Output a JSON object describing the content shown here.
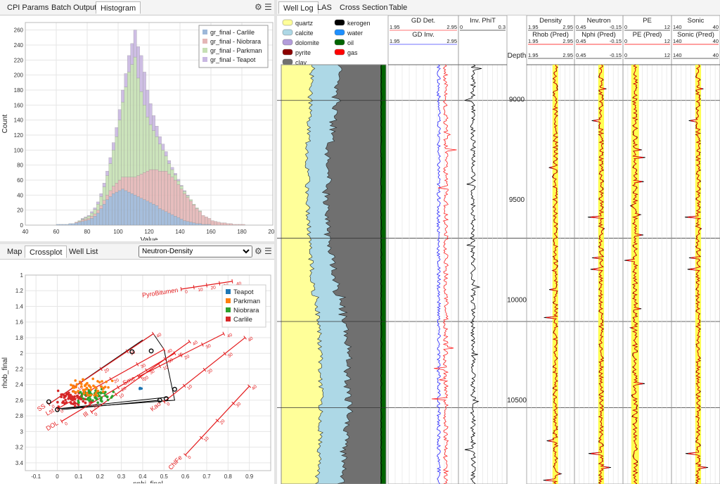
{
  "hist_panel": {
    "tabs": [
      "CPI Params",
      "Batch Output",
      "Histogram"
    ],
    "active_tab": "Histogram",
    "icons": [
      "gear-icon",
      "menu-icon"
    ]
  },
  "cross_panel": {
    "tabs": [
      "Map",
      "Crossplot",
      "Well List"
    ],
    "active_tab": "Crossplot",
    "select_value": "Neutron-Density",
    "icons": [
      "gear-icon",
      "menu-icon"
    ]
  },
  "log_panel": {
    "tabs": [
      "Well Log",
      "LAS",
      "Cross Section",
      "Table"
    ],
    "active_tab": "Well Log"
  },
  "chart_data": [
    {
      "type": "bar",
      "stacked": true,
      "title": "",
      "xlabel": "Value",
      "ylabel": "Count",
      "xlim": [
        40,
        200
      ],
      "ylim": [
        0,
        270
      ],
      "xticks": [
        "40",
        "60",
        "80",
        "100",
        "120",
        "140",
        "160",
        "180",
        "200"
      ],
      "yticks": [
        "0",
        "20",
        "40",
        "60",
        "80",
        "100",
        "120",
        "140",
        "160",
        "180",
        "200",
        "220",
        "240",
        "260"
      ],
      "legend_position": "top-right",
      "bin_width": 2,
      "bin_start": 60,
      "series": [
        {
          "name": "gr_final - Carlile",
          "color": "#9db8d9",
          "values": [
            1,
            1,
            1,
            1,
            2,
            2,
            3,
            4,
            5,
            6,
            7,
            9,
            12,
            16,
            22,
            28,
            34,
            38,
            42,
            44,
            46,
            48,
            46,
            44,
            42,
            40,
            38,
            36,
            34,
            32,
            30,
            28,
            26,
            22,
            20,
            18,
            16,
            14,
            12,
            10,
            8,
            6,
            5,
            4,
            3,
            2,
            2,
            1,
            1,
            1,
            0,
            0,
            0,
            0,
            0,
            0,
            0,
            0,
            0,
            0,
            0,
            0,
            0,
            0,
            0,
            0,
            0,
            0,
            0,
            0
          ]
        },
        {
          "name": "gr_final - Niobrara",
          "color": "#e4b6b6",
          "values": [
            0,
            0,
            0,
            0,
            0,
            0,
            1,
            1,
            2,
            2,
            2,
            3,
            3,
            4,
            4,
            5,
            6,
            8,
            10,
            12,
            14,
            16,
            18,
            20,
            22,
            24,
            28,
            32,
            36,
            40,
            44,
            46,
            48,
            50,
            52,
            54,
            52,
            50,
            48,
            44,
            40,
            36,
            32,
            28,
            24,
            20,
            16,
            12,
            10,
            8,
            6,
            5,
            4,
            3,
            3,
            2,
            2,
            1,
            1,
            1,
            1,
            0,
            0,
            0,
            0,
            0,
            0,
            0,
            0,
            0
          ]
        },
        {
          "name": "gr_final - Parkman",
          "color": "#c6e0b4",
          "values": [
            0,
            0,
            0,
            0,
            0,
            0,
            0,
            1,
            1,
            2,
            3,
            4,
            6,
            8,
            12,
            18,
            26,
            36,
            48,
            62,
            80,
            100,
            120,
            140,
            150,
            160,
            130,
            110,
            90,
            72,
            60,
            52,
            44,
            36,
            28,
            20,
            14,
            10,
            7,
            5,
            4,
            3,
            2,
            2,
            1,
            1,
            1,
            0,
            0,
            0,
            0,
            0,
            0,
            0,
            0,
            0,
            0,
            0,
            0,
            0,
            0,
            0,
            0,
            0,
            0,
            0,
            0,
            0,
            0,
            0
          ]
        },
        {
          "name": "gr_final - Teapot",
          "color": "#c9b8e2",
          "values": [
            0,
            0,
            0,
            0,
            0,
            0,
            0,
            0,
            1,
            1,
            1,
            2,
            2,
            3,
            4,
            5,
            6,
            8,
            10,
            12,
            14,
            16,
            18,
            22,
            28,
            36,
            42,
            48,
            44,
            36,
            28,
            20,
            14,
            10,
            8,
            6,
            4,
            3,
            2,
            2,
            1,
            1,
            1,
            0,
            0,
            0,
            0,
            0,
            0,
            0,
            0,
            0,
            0,
            0,
            0,
            0,
            0,
            0,
            0,
            0,
            0,
            0,
            0,
            0,
            0,
            0,
            0,
            0,
            0,
            0
          ]
        }
      ]
    },
    {
      "type": "scatter",
      "title": "",
      "xlabel": "nphi_final",
      "ylabel": "rhob_final",
      "xlim": [
        -0.15,
        1.0
      ],
      "ylim": [
        3.5,
        1.0
      ],
      "xticks": [
        "-0.1",
        "0",
        "0.1",
        "0.2",
        "0.3",
        "0.4",
        "0.5",
        "0.6",
        "0.7",
        "0.8",
        "0.9"
      ],
      "yticks": [
        "1",
        "1.2",
        "1.4",
        "1.6",
        "1.8",
        "2",
        "2.2",
        "2.4",
        "2.6",
        "2.8",
        "3",
        "3.2",
        "3.4"
      ],
      "legend_position": "top-right",
      "legend": [
        {
          "name": "Teapot",
          "color": "#1f77b4"
        },
        {
          "name": "Parkman",
          "color": "#ff7f0e"
        },
        {
          "name": "Niobrara",
          "color": "#2ca02c"
        },
        {
          "name": "Carlile",
          "color": "#d62728"
        }
      ],
      "mineral_lines": [
        {
          "label": "PyroBitumen",
          "from": [
            0.58,
            1.18
          ],
          "to": [
            0.82,
            1.08
          ],
          "ticks": [
            "0",
            "10",
            "20",
            "30",
            "40"
          ]
        },
        {
          "label": "SS",
          "from": [
            -0.04,
            2.65
          ],
          "to": [
            0.45,
            1.75
          ],
          "ticks": [
            "0",
            "10",
            "20",
            "30",
            "40"
          ]
        },
        {
          "label": "Lst",
          "from": [
            0.0,
            2.71
          ],
          "to": [
            0.5,
            1.95
          ],
          "ticks": [
            "0",
            "10",
            "20",
            "30",
            "40"
          ]
        },
        {
          "label": "DOL",
          "from": [
            0.02,
            2.87
          ],
          "to": [
            0.55,
            2.0
          ],
          "ticks": [
            "0",
            "10",
            "20",
            "30",
            "40"
          ]
        },
        {
          "label": "Ill",
          "from": [
            0.16,
            2.75
          ],
          "to": [
            0.62,
            1.85
          ],
          "ticks": [
            "0",
            "10",
            "20",
            "30",
            "40"
          ]
        },
        {
          "label": "Sme",
          "from": [
            0.38,
            2.3
          ],
          "to": [
            0.78,
            1.75
          ],
          "ticks": [
            "0",
            "10",
            "20",
            "30",
            "40"
          ]
        },
        {
          "label": "Kao",
          "from": [
            0.5,
            2.62
          ],
          "to": [
            0.88,
            1.8
          ],
          "ticks": [
            "0",
            "10",
            "20",
            "30",
            "40"
          ]
        },
        {
          "label": "ChlFe",
          "from": [
            0.6,
            3.3
          ],
          "to": [
            0.9,
            2.42
          ],
          "ticks": [
            "0",
            "10",
            "20",
            "30",
            "40"
          ]
        }
      ]
    },
    {
      "type": "line",
      "title": "",
      "depth_label": "Depth",
      "depth_ticks": [
        "9000",
        "9500",
        "10000",
        "10500"
      ],
      "lith_legend": [
        {
          "name": "quartz",
          "color": "#ffff99"
        },
        {
          "name": "kerogen",
          "color": "#000000"
        },
        {
          "name": "calcite",
          "color": "#add8e6"
        },
        {
          "name": "water",
          "color": "#1e90ff"
        },
        {
          "name": "dolomite",
          "color": "#b39ddb"
        },
        {
          "name": "oil",
          "color": "#006400"
        },
        {
          "name": "pyrite",
          "color": "#8b0000"
        },
        {
          "name": "gas",
          "color": "#ff0000"
        },
        {
          "name": "clay",
          "color": "#707070"
        }
      ],
      "tracks": [
        {
          "headers": [
            {
              "name": "GD Det.",
              "min": "1.95",
              "max": "2.95",
              "color": "#ff4444"
            },
            {
              "name": "GD Inv.",
              "min": "1.95",
              "max": "2.95",
              "color": "#4444ff"
            }
          ]
        },
        {
          "headers": [
            {
              "name": "Inv. PhiT",
              "min": "0",
              "max": "0.3",
              "color": "#000000"
            }
          ]
        },
        {
          "headers": [
            {
              "name": "Density",
              "min": "1.95",
              "max": "2.95",
              "color": "#000000"
            },
            {
              "name": "Rhob (Pred)",
              "min": "1.95",
              "max": "2.95",
              "color": "#ff0000"
            },
            {
              "name": "",
              "min": "1.95",
              "max": "2.95",
              "color": "#000000"
            }
          ]
        },
        {
          "headers": [
            {
              "name": "Neutron",
              "min": "0.45",
              "max": "-0.15",
              "color": "#000000"
            },
            {
              "name": "Nphi (Pred)",
              "min": "0.45",
              "max": "-0.15",
              "color": "#ff0000"
            },
            {
              "name": "",
              "min": "0.45",
              "max": "-0.15",
              "color": "#000000"
            }
          ]
        },
        {
          "headers": [
            {
              "name": "PE",
              "min": "0",
              "max": "12",
              "color": "#000000"
            },
            {
              "name": "PE (Pred)",
              "min": "0",
              "max": "12",
              "color": "#ff0000"
            },
            {
              "name": "",
              "min": "0",
              "max": "12",
              "color": "#000000"
            }
          ]
        },
        {
          "headers": [
            {
              "name": "Sonic",
              "min": "140",
              "max": "40",
              "color": "#000000"
            },
            {
              "name": "Sonic (Pred)",
              "min": "140",
              "max": "40",
              "color": "#ff0000"
            },
            {
              "name": "",
              "min": "140",
              "max": "40",
              "color": "#000000"
            }
          ]
        }
      ]
    }
  ]
}
